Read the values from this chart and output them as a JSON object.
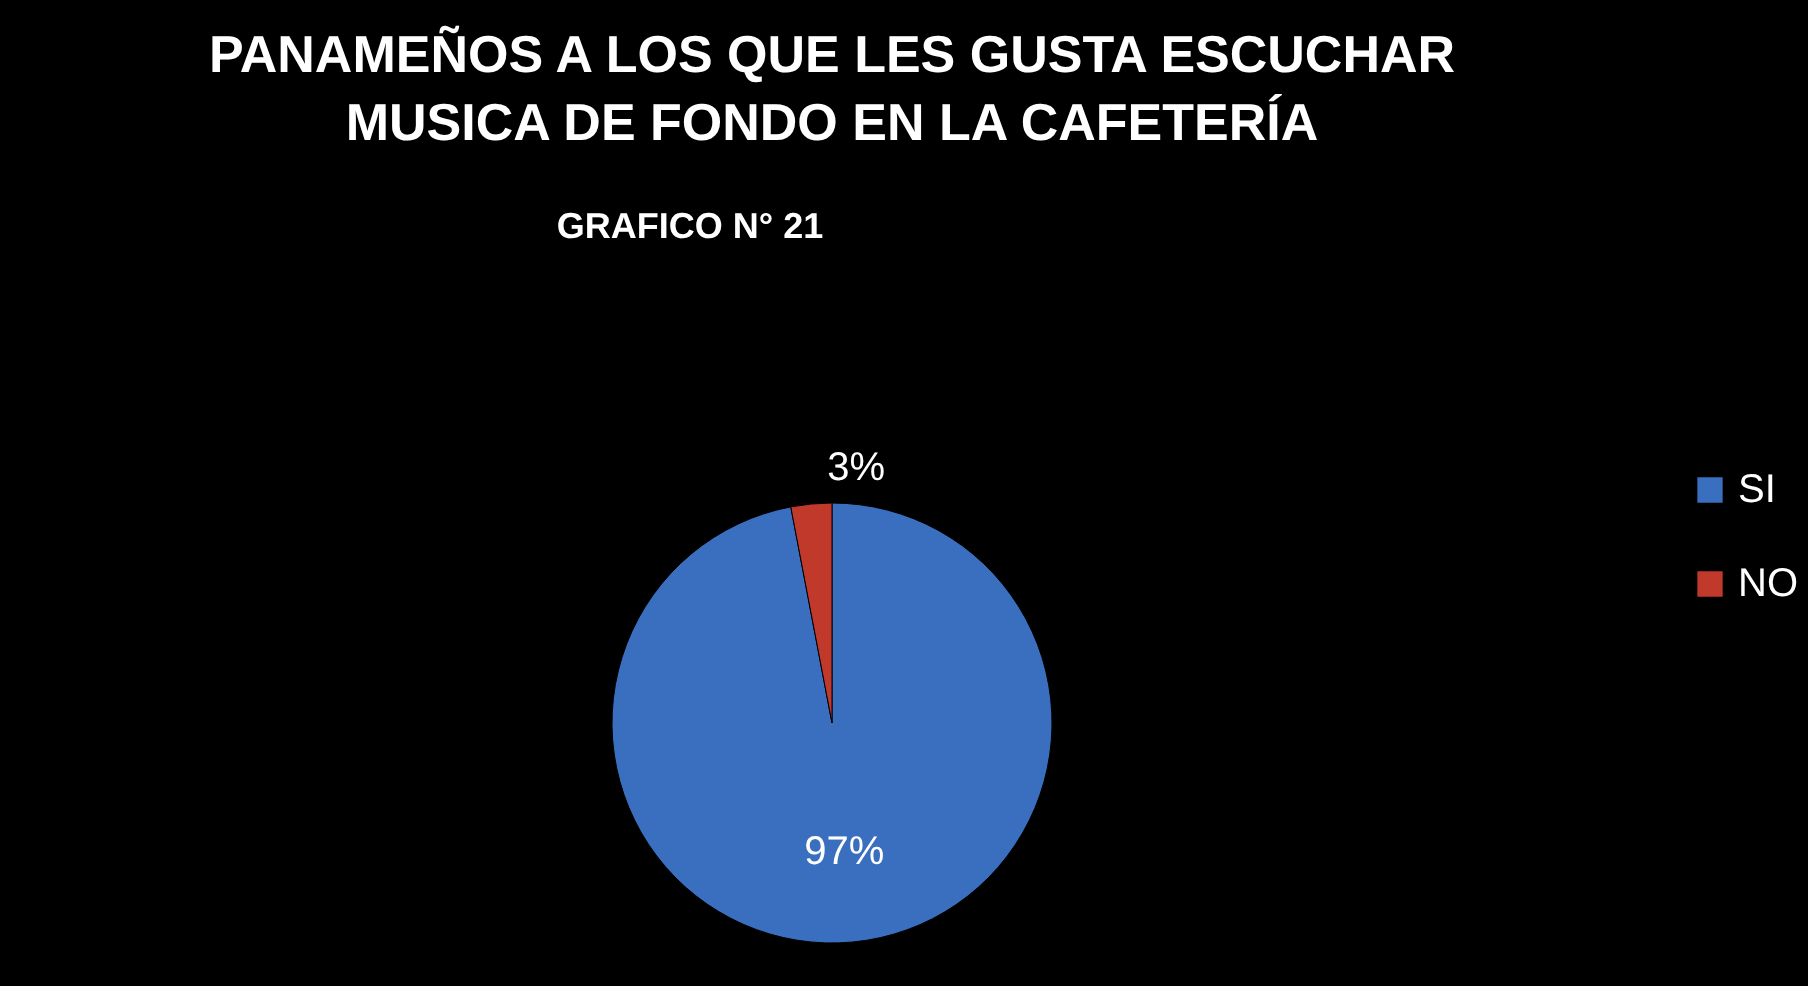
{
  "chart_data": {
    "type": "pie",
    "title": "PANAMEÑOS A LOS QUE LES GUSTA ESCUCHAR MUSICA DE FONDO EN LA CAFETERÍA",
    "annotations": [
      "GRAFICO N° 21"
    ],
    "categories": [
      "SI",
      "NO"
    ],
    "values": [
      97,
      3
    ],
    "value_labels": [
      "97%",
      "3%"
    ],
    "colors": [
      "#3a6fbf",
      "#c0392b"
    ],
    "legend": "right"
  }
}
